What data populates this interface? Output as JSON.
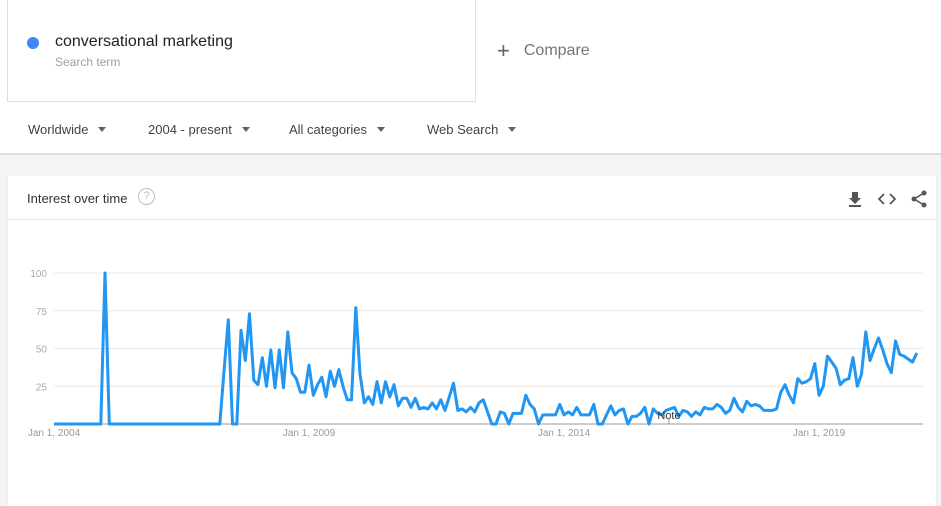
{
  "search_term": {
    "name": "conversational marketing",
    "subtitle": "Search term",
    "color": "#4285f4"
  },
  "compare": {
    "icon": "plus-icon",
    "label": "Compare"
  },
  "filters": [
    {
      "label": "Worldwide"
    },
    {
      "label": "2004 - present"
    },
    {
      "label": "All categories"
    },
    {
      "label": "Web Search"
    }
  ],
  "card": {
    "title": "Interest over time",
    "help_icon": "help-circle-icon",
    "actions": [
      "download-icon",
      "embed-code-icon",
      "share-icon"
    ]
  },
  "chart_data": {
    "type": "line",
    "title": "",
    "xlabel": "",
    "ylabel": "",
    "ylim": [
      0,
      100
    ],
    "yticks": [
      25,
      50,
      75,
      100
    ],
    "xtick_labels": [
      "Jan 1, 2004",
      "Jan 1, 2009",
      "Jan 1, 2014",
      "Jan 1, 2019"
    ],
    "x_start": "Jan 1, 2004",
    "frequency": "monthly",
    "annotation": "Note",
    "grid": true,
    "line_color": "#2196f3",
    "values": [
      0,
      0,
      0,
      0,
      0,
      0,
      0,
      0,
      0,
      0,
      0,
      0,
      100,
      0,
      0,
      0,
      0,
      0,
      0,
      0,
      0,
      0,
      0,
      0,
      0,
      0,
      0,
      0,
      0,
      0,
      0,
      0,
      0,
      0,
      0,
      0,
      0,
      0,
      0,
      0,
      35,
      69,
      0,
      0,
      62,
      42,
      73,
      29,
      26,
      44,
      25,
      49,
      24,
      49,
      24,
      61,
      34,
      30,
      21,
      21,
      39,
      19,
      26,
      31,
      18,
      35,
      25,
      36,
      25,
      16,
      16,
      77,
      33,
      14,
      18,
      13,
      28,
      14,
      28,
      18,
      26,
      12,
      17,
      17,
      11,
      17,
      10,
      11,
      10,
      14,
      10,
      16,
      9,
      18,
      27,
      9,
      10,
      8,
      11,
      8,
      14,
      16,
      8,
      0,
      0,
      8,
      7,
      0,
      7,
      7,
      7,
      19,
      13,
      10,
      0,
      6,
      6,
      6,
      6,
      13,
      6,
      8,
      6,
      11,
      6,
      6,
      6,
      13,
      0,
      0,
      6,
      12,
      6,
      9,
      10,
      0,
      5,
      5,
      7,
      11,
      0,
      10,
      7,
      6,
      9,
      10,
      11,
      5,
      9,
      8,
      5,
      8,
      6,
      11,
      10,
      10,
      13,
      11,
      7,
      9,
      17,
      11,
      8,
      15,
      12,
      13,
      12,
      9,
      9,
      9,
      10,
      21,
      26,
      19,
      14,
      30,
      27,
      28,
      30,
      40,
      19,
      25,
      45,
      41,
      37,
      26,
      29,
      30,
      44,
      25,
      33,
      61,
      42,
      50,
      57,
      49,
      40,
      34,
      55,
      46,
      45,
      43,
      41,
      47
    ]
  }
}
